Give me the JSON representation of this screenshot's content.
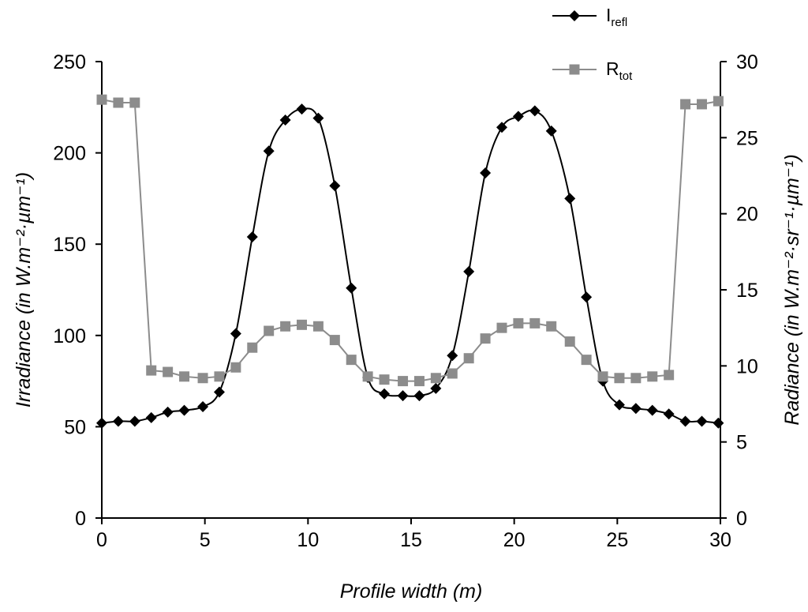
{
  "chart_data": {
    "type": "line",
    "xlabel": "Profile width (m)",
    "x_ticks": [
      "0",
      "5",
      "10",
      "15",
      "20",
      "25",
      "30"
    ],
    "xlim": [
      0,
      30
    ],
    "left_axis": {
      "title": "Irradiance (in W.m⁻²·µm⁻¹)",
      "ylim": [
        0,
        250
      ],
      "ticks": [
        "0",
        "50",
        "100",
        "150",
        "200",
        "250"
      ]
    },
    "right_axis": {
      "title": "Radiance (in W.m⁻²·sr⁻¹·µm⁻¹)",
      "ylim": [
        0,
        30
      ],
      "ticks": [
        "0",
        "5",
        "10",
        "15",
        "20",
        "25",
        "30"
      ]
    },
    "legend": {
      "placement": "top-right"
    },
    "series": [
      {
        "name": "Irefl",
        "label_main": "I",
        "label_sub": "refl",
        "axis": "left",
        "marker": "diamond",
        "color": "#000000",
        "x": [
          0,
          0.8,
          1.6,
          2.4,
          3.2,
          4.0,
          4.9,
          5.7,
          6.5,
          7.3,
          8.1,
          8.9,
          9.7,
          10.5,
          11.3,
          12.1,
          12.9,
          13.7,
          14.6,
          15.4,
          16.2,
          17.0,
          17.8,
          18.6,
          19.4,
          20.2,
          21.0,
          21.8,
          22.7,
          23.5,
          24.3,
          25.1,
          25.9,
          26.7,
          27.5,
          28.3,
          29.1,
          29.9
        ],
        "values": [
          52,
          53,
          53,
          55,
          58,
          59,
          61,
          69,
          101,
          154,
          201,
          218,
          224,
          219,
          182,
          126,
          77,
          68,
          67,
          67,
          71,
          89,
          135,
          189,
          214,
          220,
          223,
          212,
          175,
          121,
          75,
          62,
          60,
          59,
          57,
          53,
          53,
          52
        ]
      },
      {
        "name": "Rtot",
        "label_main": "R",
        "label_sub": "tot",
        "axis": "right",
        "marker": "square",
        "color": "#8c8c8c",
        "x": [
          0,
          0.8,
          1.6,
          2.4,
          3.2,
          4.0,
          4.9,
          5.7,
          6.5,
          7.3,
          8.1,
          8.9,
          9.7,
          10.5,
          11.3,
          12.1,
          12.9,
          13.7,
          14.6,
          15.4,
          16.2,
          17.0,
          17.8,
          18.6,
          19.4,
          20.2,
          21.0,
          21.8,
          22.7,
          23.5,
          24.3,
          25.1,
          25.9,
          26.7,
          27.5,
          28.3,
          29.1,
          29.9
        ],
        "values": [
          27.5,
          27.3,
          27.3,
          9.7,
          9.6,
          9.3,
          9.2,
          9.3,
          9.9,
          11.2,
          12.3,
          12.6,
          12.7,
          12.6,
          11.7,
          10.4,
          9.3,
          9.1,
          9.0,
          9.0,
          9.2,
          9.5,
          10.5,
          11.8,
          12.5,
          12.8,
          12.8,
          12.6,
          11.6,
          10.4,
          9.3,
          9.2,
          9.2,
          9.3,
          9.4,
          27.2,
          27.2,
          27.4
        ]
      }
    ]
  }
}
